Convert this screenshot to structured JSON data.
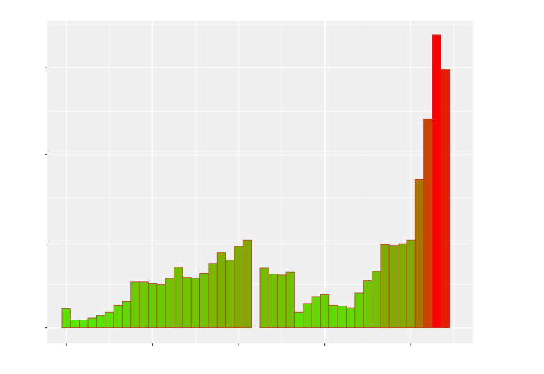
{
  "chart_data": {
    "type": "bar",
    "title": "",
    "xlabel": "",
    "ylabel": "",
    "x_ticks": [
      0,
      10,
      20,
      30,
      40
    ],
    "y_ticks": [
      0,
      10,
      20,
      30
    ],
    "xlim": [
      -2.2,
      47.2
    ],
    "ylim": [
      -1.8,
      35.4
    ],
    "grid": true,
    "legend": "none",
    "colors": {
      "panel": "#f0f0f0",
      "grid": "#ffffff",
      "bar_outline": "#c0392b",
      "low": "#50ee00",
      "high": "#ff0000"
    },
    "series": [
      {
        "x": [
          0,
          1,
          2,
          3,
          4,
          5,
          6,
          7,
          8,
          9,
          10,
          11,
          12,
          13,
          14,
          15,
          16,
          17,
          18,
          19,
          20,
          21,
          22,
          23,
          24,
          25,
          26,
          27,
          28,
          29,
          30,
          31,
          32,
          33,
          34,
          35,
          36,
          37,
          38,
          39,
          40,
          41,
          42,
          43,
          44,
          45
        ],
        "values": [
          2.2,
          0.9,
          0.9,
          1.1,
          1.4,
          1.8,
          2.6,
          3.0,
          5.3,
          5.3,
          5.1,
          5.0,
          5.7,
          7.0,
          5.8,
          5.7,
          6.3,
          7.4,
          8.7,
          7.8,
          9.4,
          10.1,
          0,
          6.9,
          6.2,
          6.1,
          6.4,
          1.8,
          2.8,
          3.6,
          3.8,
          2.6,
          2.5,
          2.3,
          4.0,
          5.4,
          6.5,
          9.6,
          9.5,
          9.7,
          10.1,
          17.1,
          24.1,
          33.8,
          29.8,
          0
        ]
      }
    ]
  }
}
